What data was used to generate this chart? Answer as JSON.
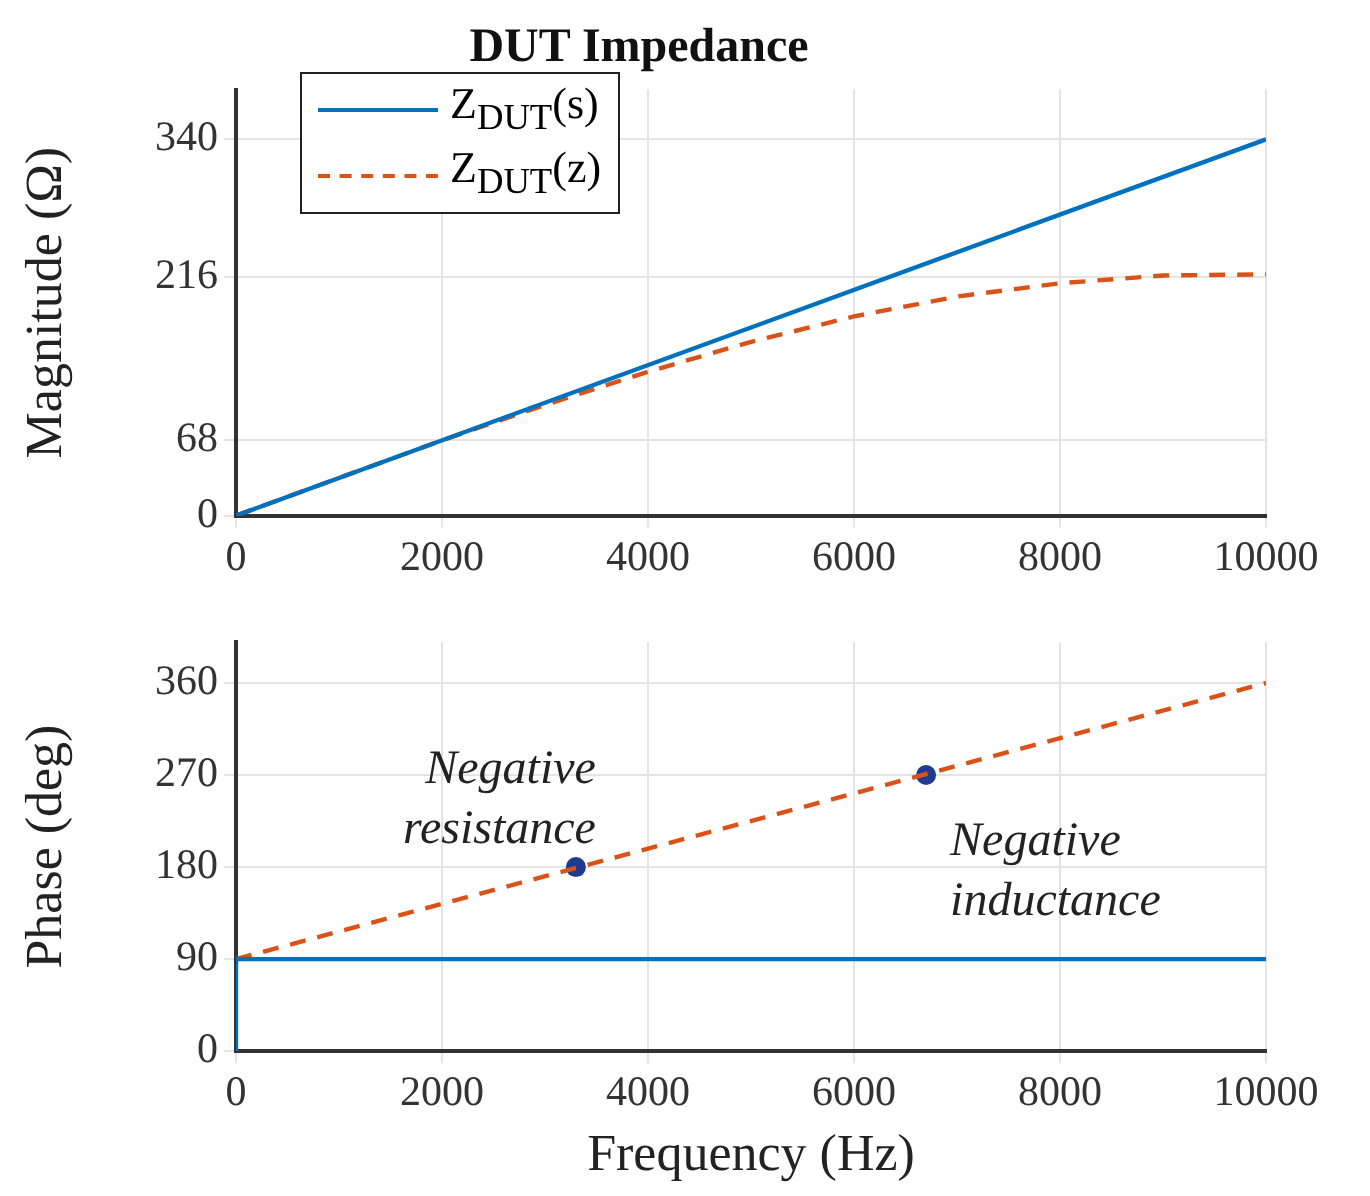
{
  "chart_data": [
    {
      "type": "line",
      "title": "DUT Impedance",
      "ylabel": "Magnitude (Ω)",
      "xlim": [
        0,
        10000
      ],
      "xticks": [
        0,
        2000,
        4000,
        6000,
        8000,
        10000
      ],
      "ylim": [
        0,
        385
      ],
      "yticks": [
        0,
        68,
        216,
        340
      ],
      "grid": true,
      "legend": "top left",
      "marker": "none",
      "series": [
        {
          "name": "Z$_{DUT}$(s)",
          "color": "#0072bd",
          "line_style": "solid",
          "x": [
            0,
            10000
          ],
          "values": [
            0,
            340
          ]
        },
        {
          "name": "Z$_{DUT}$(z)",
          "color": "#d95319",
          "line_style": "dashed",
          "x": [
            0,
            2000,
            3000,
            4000,
            5000,
            6000,
            7000,
            8000,
            9000,
            10000
          ],
          "values": [
            0,
            68,
            100,
            130,
            157,
            180,
            198,
            210,
            217,
            218
          ]
        }
      ]
    },
    {
      "type": "line",
      "xlabel": "Frequency (Hz)",
      "ylabel": "Phase (deg)",
      "xlim": [
        0,
        10000
      ],
      "xticks": [
        0,
        2000,
        4000,
        6000,
        8000,
        10000
      ],
      "ylim": [
        0,
        400
      ],
      "yticks": [
        0,
        90,
        180,
        270,
        360
      ],
      "grid": true,
      "legend": false,
      "marker": "none",
      "annotations": [
        {
          "text": "Negative resistance",
          "x": 3300,
          "y": 180
        },
        {
          "text": "Negative inductance",
          "x": 6700,
          "y": 270
        }
      ],
      "series": [
        {
          "color": "#0072bd",
          "line_style": "solid",
          "x": [
            0,
            0,
            10000
          ],
          "values": [
            0,
            90,
            90
          ]
        },
        {
          "color": "#d95319",
          "line_style": "dashed",
          "x": [
            0,
            10000
          ],
          "values": [
            90,
            360
          ]
        },
        {
          "type": "scatter",
          "color": "#1f3a93",
          "marker": "circle",
          "x": [
            3300,
            6700
          ],
          "values": [
            180,
            270
          ]
        }
      ]
    }
  ]
}
